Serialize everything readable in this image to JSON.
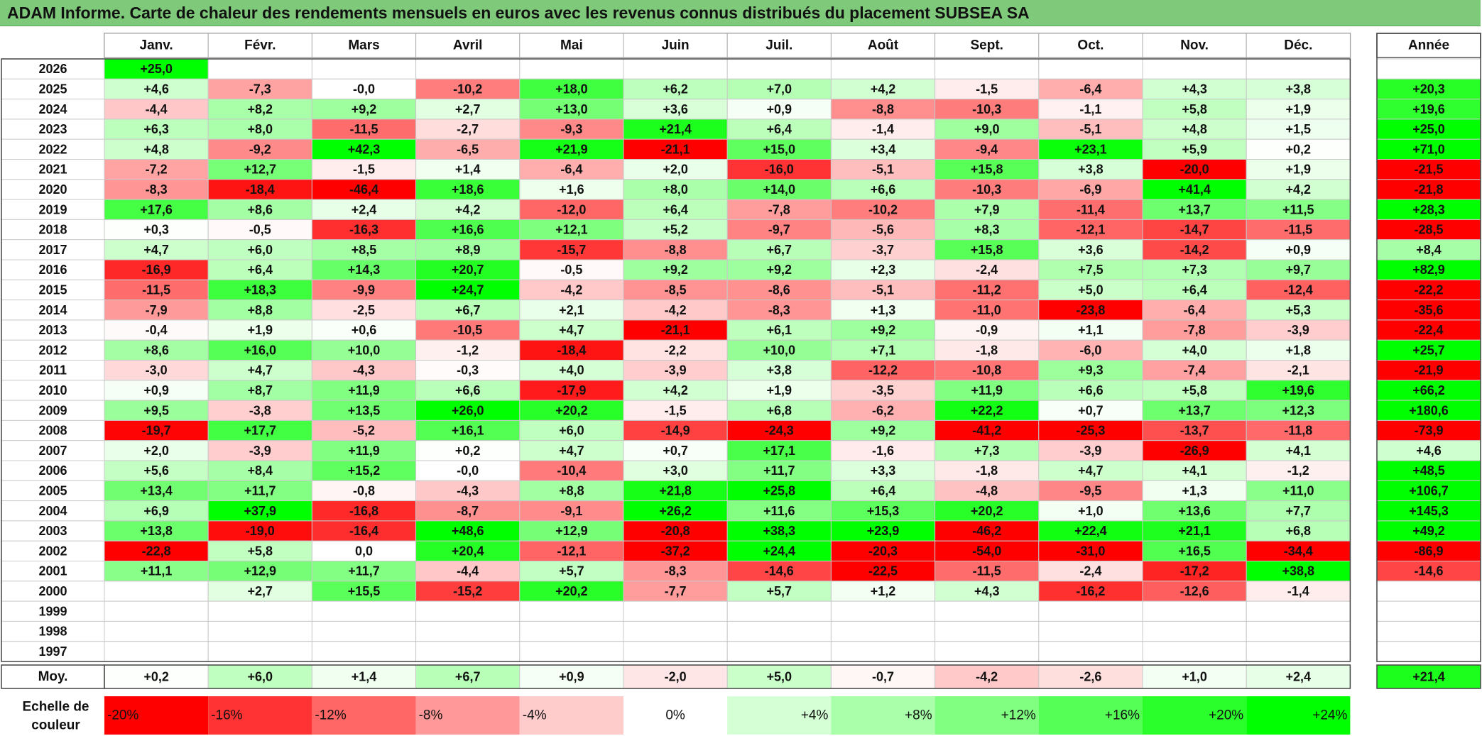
{
  "title": "ADAM Informe. Carte de chaleur des rendements mensuels en euros avec les revenus connus distribués du placement SUBSEA SA",
  "chart_data": {
    "type": "heatmap",
    "months": [
      "Janv.",
      "Févr.",
      "Mars",
      "Avril",
      "Mai",
      "Juin",
      "Juil.",
      "Août",
      "Sept.",
      "Oct.",
      "Nov.",
      "Déc."
    ],
    "annual_header": "Année",
    "rows": [
      {
        "year": "2026",
        "months": [
          "+25,0",
          "",
          "",
          "",
          "",
          "",
          "",
          "",
          "",
          "",
          "",
          ""
        ],
        "annual": ""
      },
      {
        "year": "2025",
        "months": [
          "+4,6",
          "-7,3",
          "-0,0",
          "-10,2",
          "+18,0",
          "+6,2",
          "+7,0",
          "+4,2",
          "-1,5",
          "-6,4",
          "+4,3",
          "+3,8"
        ],
        "annual": "+20,3"
      },
      {
        "year": "2024",
        "months": [
          "-4,4",
          "+8,2",
          "+9,2",
          "+2,7",
          "+13,0",
          "+3,6",
          "+0,9",
          "-8,8",
          "-10,3",
          "-1,1",
          "+5,8",
          "+1,9"
        ],
        "annual": "+19,6"
      },
      {
        "year": "2023",
        "months": [
          "+6,3",
          "+8,0",
          "-11,5",
          "-2,7",
          "-9,3",
          "+21,4",
          "+6,4",
          "-1,4",
          "+9,0",
          "-5,1",
          "+4,8",
          "+1,5"
        ],
        "annual": "+25,0"
      },
      {
        "year": "2022",
        "months": [
          "+4,8",
          "-9,2",
          "+42,3",
          "-6,5",
          "+21,9",
          "-21,1",
          "+15,0",
          "+3,4",
          "-9,4",
          "+23,1",
          "+5,9",
          "+0,2"
        ],
        "annual": "+71,0"
      },
      {
        "year": "2021",
        "months": [
          "-7,2",
          "+12,7",
          "-1,5",
          "+1,4",
          "-6,4",
          "+2,0",
          "-16,0",
          "-5,1",
          "+15,8",
          "+3,8",
          "-20,0",
          "+1,9"
        ],
        "annual": "-21,5"
      },
      {
        "year": "2020",
        "months": [
          "-8,3",
          "-18,4",
          "-46,4",
          "+18,6",
          "+1,6",
          "+8,0",
          "+14,0",
          "+6,6",
          "-10,3",
          "-6,9",
          "+41,4",
          "+4,2"
        ],
        "annual": "-21,8"
      },
      {
        "year": "2019",
        "months": [
          "+17,6",
          "+8,6",
          "+2,4",
          "+4,2",
          "-12,0",
          "+6,4",
          "-7,8",
          "-10,2",
          "+7,9",
          "-11,4",
          "+13,7",
          "+11,5"
        ],
        "annual": "+28,3"
      },
      {
        "year": "2018",
        "months": [
          "+0,3",
          "-0,5",
          "-16,3",
          "+16,6",
          "+12,1",
          "+5,2",
          "-9,7",
          "-5,6",
          "+8,3",
          "-12,1",
          "-14,7",
          "-11,5"
        ],
        "annual": "-28,5"
      },
      {
        "year": "2017",
        "months": [
          "+4,7",
          "+6,0",
          "+8,5",
          "+8,9",
          "-15,7",
          "-8,8",
          "+6,7",
          "-3,7",
          "+15,8",
          "+3,6",
          "-14,2",
          "+0,9"
        ],
        "annual": "+8,4"
      },
      {
        "year": "2016",
        "months": [
          "-16,9",
          "+6,4",
          "+14,3",
          "+20,7",
          "-0,5",
          "+9,2",
          "+9,2",
          "+2,3",
          "-2,4",
          "+7,5",
          "+7,3",
          "+9,7"
        ],
        "annual": "+82,9"
      },
      {
        "year": "2015",
        "months": [
          "-11,5",
          "+18,3",
          "-9,9",
          "+24,7",
          "-4,2",
          "-8,5",
          "-8,6",
          "-5,1",
          "-11,2",
          "+5,0",
          "+6,4",
          "-12,4"
        ],
        "annual": "-22,2"
      },
      {
        "year": "2014",
        "months": [
          "-7,9",
          "+8,8",
          "-2,5",
          "+6,7",
          "+2,1",
          "-4,2",
          "-8,3",
          "+1,3",
          "-11,0",
          "-23,8",
          "-6,4",
          "+5,3"
        ],
        "annual": "-35,6"
      },
      {
        "year": "2013",
        "months": [
          "-0,4",
          "+1,9",
          "+0,6",
          "-10,5",
          "+4,7",
          "-21,1",
          "+6,1",
          "+9,2",
          "-0,9",
          "+1,1",
          "-7,8",
          "-3,9"
        ],
        "annual": "-22,4"
      },
      {
        "year": "2012",
        "months": [
          "+8,6",
          "+16,0",
          "+10,0",
          "-1,2",
          "-18,4",
          "-2,2",
          "+10,0",
          "+7,1",
          "-1,8",
          "-6,0",
          "+4,0",
          "+1,8"
        ],
        "annual": "+25,7"
      },
      {
        "year": "2011",
        "months": [
          "-3,0",
          "+4,7",
          "-4,3",
          "-0,3",
          "+4,0",
          "-3,9",
          "+3,8",
          "-12,2",
          "-10,8",
          "+9,3",
          "-7,4",
          "-2,1"
        ],
        "annual": "-21,9"
      },
      {
        "year": "2010",
        "months": [
          "+0,9",
          "+8,7",
          "+11,9",
          "+6,6",
          "-17,9",
          "+4,2",
          "+1,9",
          "-3,5",
          "+11,9",
          "+6,6",
          "+5,8",
          "+19,6"
        ],
        "annual": "+66,2"
      },
      {
        "year": "2009",
        "months": [
          "+9,5",
          "-3,8",
          "+13,5",
          "+26,0",
          "+20,2",
          "-1,5",
          "+6,8",
          "-6,2",
          "+22,2",
          "+0,7",
          "+13,7",
          "+12,3"
        ],
        "annual": "+180,6"
      },
      {
        "year": "2008",
        "months": [
          "-19,7",
          "+17,7",
          "-5,2",
          "+16,1",
          "+6,0",
          "-14,9",
          "-24,3",
          "+9,2",
          "-41,2",
          "-25,3",
          "-13,7",
          "-11,8"
        ],
        "annual": "-73,9"
      },
      {
        "year": "2007",
        "months": [
          "+2,0",
          "-3,9",
          "+11,9",
          "+0,2",
          "+4,7",
          "+0,7",
          "+17,1",
          "-1,6",
          "+7,3",
          "-3,9",
          "-26,9",
          "+4,1"
        ],
        "annual": "+4,6"
      },
      {
        "year": "2006",
        "months": [
          "+5,6",
          "+8,4",
          "+15,2",
          "-0,0",
          "-10,4",
          "+3,0",
          "+11,7",
          "+3,3",
          "-1,8",
          "+4,7",
          "+4,1",
          "-1,2"
        ],
        "annual": "+48,5"
      },
      {
        "year": "2005",
        "months": [
          "+13,4",
          "+11,7",
          "-0,8",
          "-4,3",
          "+8,8",
          "+21,8",
          "+25,8",
          "+6,4",
          "-4,8",
          "-9,5",
          "+1,3",
          "+11,0"
        ],
        "annual": "+106,7"
      },
      {
        "year": "2004",
        "months": [
          "+6,9",
          "+37,9",
          "-16,8",
          "-8,7",
          "-9,1",
          "+26,2",
          "+11,6",
          "+15,3",
          "+20,2",
          "+1,0",
          "+13,6",
          "+7,7"
        ],
        "annual": "+145,3"
      },
      {
        "year": "2003",
        "months": [
          "+13,8",
          "-19,0",
          "-16,4",
          "+48,6",
          "+12,9",
          "-20,8",
          "+38,3",
          "+23,9",
          "-46,2",
          "+22,4",
          "+21,1",
          "+6,8"
        ],
        "annual": "+49,2"
      },
      {
        "year": "2002",
        "months": [
          "-22,8",
          "+5,8",
          "0,0",
          "+20,4",
          "-12,1",
          "-37,2",
          "+24,4",
          "-20,3",
          "-54,0",
          "-31,0",
          "+16,5",
          "-34,4"
        ],
        "annual": "-86,9"
      },
      {
        "year": "2001",
        "months": [
          "+11,1",
          "+12,9",
          "+11,7",
          "-4,4",
          "+5,7",
          "-8,3",
          "-14,6",
          "-22,5",
          "-11,5",
          "-2,4",
          "-17,2",
          "+38,8"
        ],
        "annual": "-14,6"
      },
      {
        "year": "2000",
        "months": [
          "",
          "+2,7",
          "+15,5",
          "-15,2",
          "+20,2",
          "-7,7",
          "+5,7",
          "+1,2",
          "+4,3",
          "-16,2",
          "-12,6",
          "-1,4"
        ],
        "annual": ""
      },
      {
        "year": "1999",
        "months": [
          "",
          "",
          "",
          "",
          "",
          "",
          "",
          "",
          "",
          "",
          "",
          ""
        ],
        "annual": ""
      },
      {
        "year": "1998",
        "months": [
          "",
          "",
          "",
          "",
          "",
          "",
          "",
          "",
          "",
          "",
          "",
          ""
        ],
        "annual": ""
      },
      {
        "year": "1997",
        "months": [
          "",
          "",
          "",
          "",
          "",
          "",
          "",
          "",
          "",
          "",
          "",
          ""
        ],
        "annual": ""
      }
    ],
    "average": {
      "label": "Moy.",
      "months": [
        "+0,2",
        "+6,0",
        "+1,4",
        "+6,7",
        "+0,9",
        "-2,0",
        "+5,0",
        "-0,7",
        "-4,2",
        "-2,6",
        "+1,0",
        "+2,4"
      ],
      "annual": "+21,4"
    },
    "color_scale": {
      "label_line1": "Echelle de",
      "label_line2": "couleur",
      "stops": [
        {
          "label": "-20%",
          "value": -20,
          "color": "#ff0000"
        },
        {
          "label": "-16%",
          "value": -16,
          "color": "#ff3333"
        },
        {
          "label": "-12%",
          "value": -12,
          "color": "#ff6666"
        },
        {
          "label": "-8%",
          "value": -8,
          "color": "#ff9999"
        },
        {
          "label": "-4%",
          "value": -4,
          "color": "#ffcccc"
        },
        {
          "label": "0%",
          "value": 0,
          "color": "#ffffff"
        },
        {
          "label": "+4%",
          "value": 4,
          "color": "#d5ffd5"
        },
        {
          "label": "+8%",
          "value": 8,
          "color": "#aaffaa"
        },
        {
          "label": "+12%",
          "value": 12,
          "color": "#80ff80"
        },
        {
          "label": "+16%",
          "value": 16,
          "color": "#55ff55"
        },
        {
          "label": "+20%",
          "value": 20,
          "color": "#2bff2b"
        },
        {
          "label": "+24%",
          "value": 24,
          "color": "#00ff00"
        }
      ]
    },
    "colors": {
      "negative_max": "#ff0000",
      "neutral": "#ffffff",
      "positive_max": "#00ff00",
      "title_bar": "#7fc97a"
    }
  }
}
